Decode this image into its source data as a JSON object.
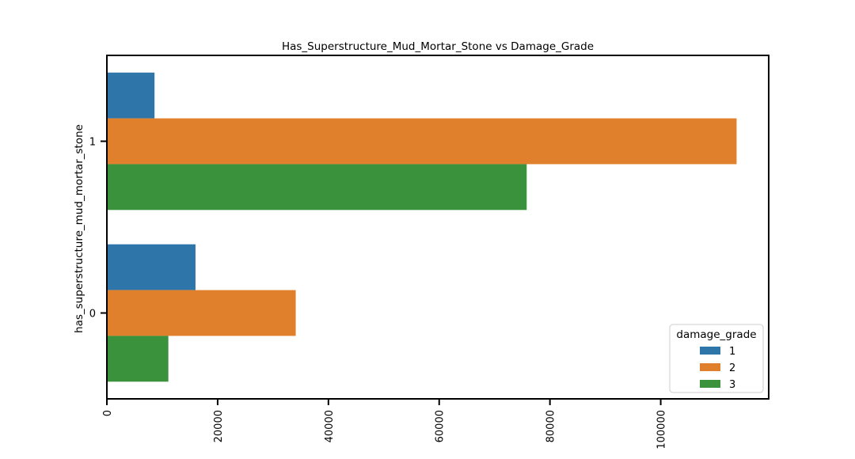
{
  "chart_data": {
    "type": "bar",
    "orientation": "horizontal",
    "title": "Has_Superstructure_Mud_Mortar_Stone vs Damage_Grade",
    "xlabel": "",
    "ylabel": "has_superstructure_mud_mortar_stone",
    "categories": [
      "1",
      "0"
    ],
    "series": [
      {
        "name": "1",
        "color": "#2e75a9",
        "values": [
          8600,
          16000
        ]
      },
      {
        "name": "2",
        "color": "#e1802c",
        "values": [
          113700,
          34100
        ]
      },
      {
        "name": "3",
        "color": "#3a933c",
        "values": [
          75800,
          11100
        ]
      }
    ],
    "xlim": [
      0,
      119500
    ],
    "xticks": [
      0,
      20000,
      40000,
      60000,
      80000,
      100000
    ],
    "xtick_labels": [
      "0",
      "20000",
      "40000",
      "60000",
      "80000",
      "100000"
    ],
    "grid": false,
    "legend": {
      "title": "damage_grade",
      "entries": [
        "1",
        "2",
        "3"
      ],
      "placement": "lower-right"
    }
  }
}
